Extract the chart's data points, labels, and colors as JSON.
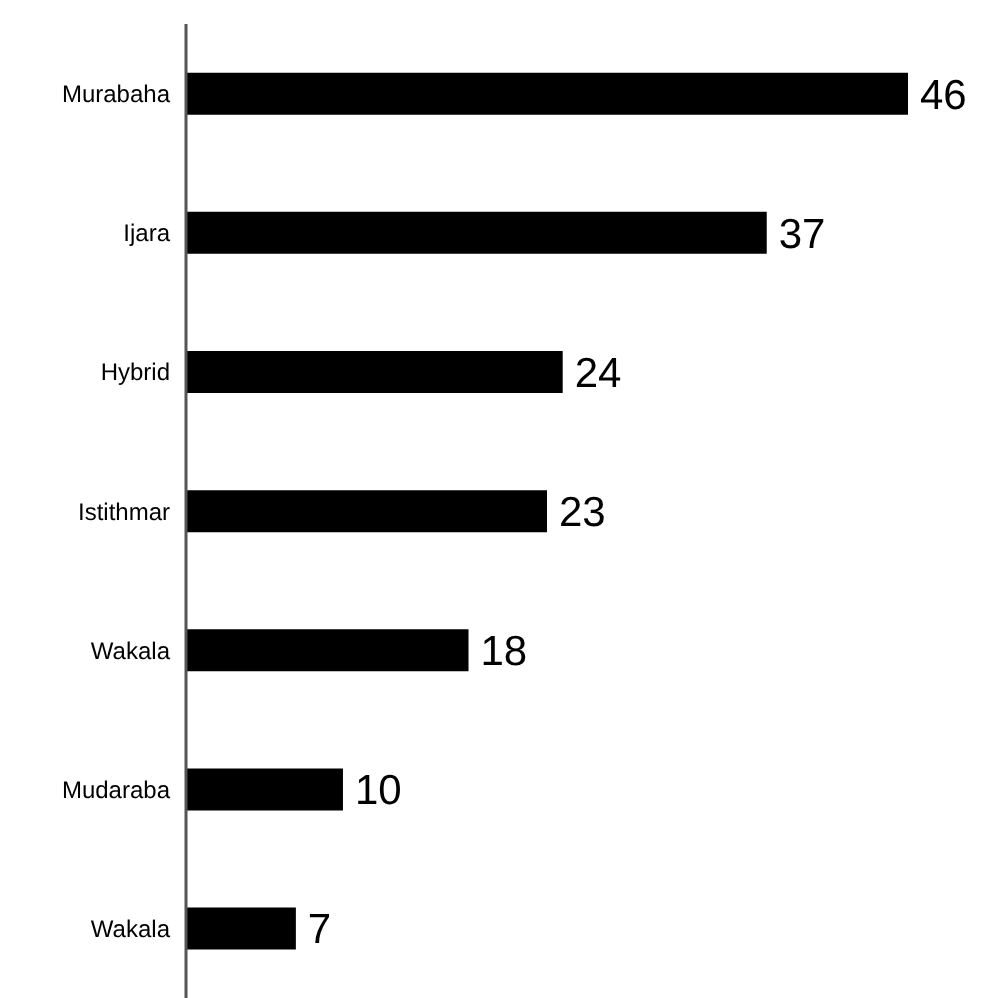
{
  "chart_data": {
    "type": "bar",
    "orientation": "horizontal",
    "categories": [
      "Murabaha",
      "Ijara",
      "Hybrid",
      "Istithmar",
      "Wakala",
      "Mudaraba",
      "Wakala"
    ],
    "values": [
      46,
      37,
      24,
      23,
      18,
      10,
      7
    ],
    "color": "#000000",
    "data_labels": true
  }
}
